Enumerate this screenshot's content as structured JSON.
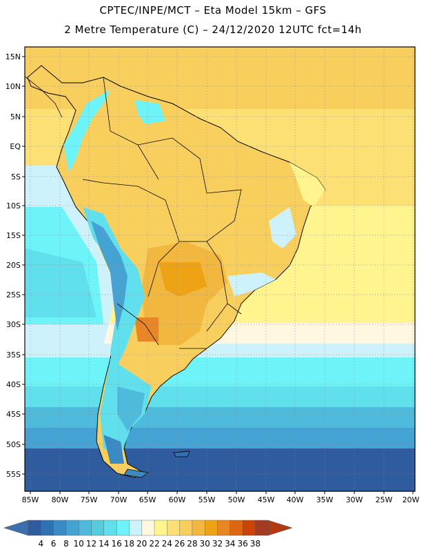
{
  "header": {
    "line1": "CPTEC/INPE/MCT –  Eta Model 15km – GFS",
    "line2": "2 Metre Temperature (C) – 24/12/2020 12UTC fct=14h"
  },
  "axes": {
    "lat_labels": [
      "15N",
      "10N",
      "5N",
      "EQ",
      "5S",
      "10S",
      "15S",
      "20S",
      "25S",
      "30S",
      "35S",
      "40S",
      "45S",
      "50S",
      "55S"
    ],
    "lon_labels": [
      "85W",
      "80W",
      "75W",
      "70W",
      "65W",
      "60W",
      "55W",
      "50W",
      "45W",
      "40W",
      "35W",
      "30W",
      "25W",
      "20W"
    ]
  },
  "colorbar": {
    "labels": [
      "4",
      "6",
      "8",
      "10",
      "12",
      "14",
      "16",
      "18",
      "20",
      "22",
      "24",
      "26",
      "28",
      "30",
      "32",
      "34",
      "36",
      "38"
    ],
    "colors": [
      "#2f5c9e",
      "#2f72b4",
      "#3a8ac6",
      "#45a3d4",
      "#4ebbdd",
      "#55ccde",
      "#5fe0ec",
      "#6cf4f8",
      "#cdf2fb",
      "#fff7e0",
      "#fff48e",
      "#fce074",
      "#f8cf5c",
      "#f1b73e",
      "#eea314",
      "#e88625",
      "#de6511",
      "#cd4206",
      "#a43a1e"
    ],
    "under_color": "#3a6fb0",
    "over_color": "#b23a10"
  }
}
